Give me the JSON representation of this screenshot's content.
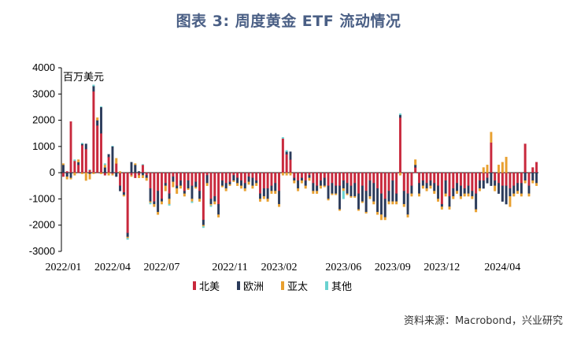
{
  "header": {
    "title": "图表 3:  周度黄金 ETF 流动情况"
  },
  "source": "资料来源：Macrobond，兴业研究",
  "chart_data": {
    "type": "bar",
    "stacked": true,
    "unit_label": "百万美元",
    "ylim": [
      -3000,
      4000
    ],
    "yticks": [
      -3000,
      -2000,
      -1000,
      0,
      1000,
      2000,
      3000,
      4000
    ],
    "xtick_labels": [
      "2022/01",
      "2022/04",
      "2022/07",
      "2022/11",
      "2023/02",
      "2023/06",
      "2023/09",
      "2023/12",
      "2024/04"
    ],
    "xtick_index": [
      0,
      13,
      26,
      44,
      57,
      74,
      87,
      100,
      116
    ],
    "legend_position": "bottom",
    "colors": {
      "north_america": "#c8283c",
      "europe": "#2a3a5a",
      "asia_pacific": "#e8a030",
      "other": "#6ad2d0"
    },
    "series": [
      {
        "name": "北美",
        "key": "north_america",
        "values": [
          -150,
          50,
          1950,
          450,
          300,
          1050,
          900,
          100,
          3100,
          1800,
          1500,
          -100,
          600,
          -50,
          350,
          -500,
          -750,
          -2300,
          -100,
          -200,
          -100,
          300,
          -100,
          -600,
          -1100,
          -700,
          -1000,
          -400,
          -800,
          -150,
          -500,
          -300,
          -700,
          -300,
          -500,
          -350,
          -700,
          -1800,
          -100,
          -1000,
          -900,
          -1200,
          -300,
          -400,
          -350,
          -100,
          -200,
          -300,
          -400,
          -150,
          -200,
          -300,
          -800,
          -600,
          -600,
          -500,
          -400,
          -700,
          1300,
          700,
          500,
          -200,
          -300,
          -200,
          -300,
          -100,
          -400,
          -500,
          -300,
          -200,
          -500,
          -400,
          -500,
          -500,
          -300,
          -400,
          -500,
          -400,
          -800,
          -500,
          -700,
          -300,
          -400,
          -600,
          -800,
          -1000,
          -700,
          -300,
          -800,
          2100,
          -700,
          -800,
          -500,
          200,
          -400,
          -300,
          -400,
          -300,
          -400,
          -500,
          -1200,
          -300,
          -900,
          -600,
          -400,
          -500,
          -600,
          -500,
          -700,
          -800,
          -300,
          -300,
          -200,
          1150,
          -300,
          -400,
          -500,
          -500,
          -600,
          -500,
          -400,
          -400,
          1100,
          -500,
          200,
          400
        ],
        "color": "#c8283c"
      },
      {
        "name": "欧洲",
        "key": "europe",
        "values": [
          300,
          -150,
          -200,
          0,
          100,
          50,
          200,
          -50,
          200,
          200,
          1000,
          200,
          100,
          1000,
          -150,
          -200,
          -100,
          -150,
          400,
          300,
          50,
          -100,
          -100,
          -500,
          -100,
          -800,
          -100,
          -100,
          -200,
          -200,
          -100,
          -200,
          -100,
          -300,
          -500,
          -200,
          -300,
          -200,
          -300,
          -200,
          -200,
          -400,
          -200,
          -200,
          -100,
          -200,
          -200,
          -200,
          -200,
          -200,
          -300,
          -100,
          -200,
          -300,
          -400,
          -200,
          -300,
          -500,
          0,
          100,
          300,
          -100,
          -300,
          -100,
          -200,
          -100,
          -300,
          -200,
          -200,
          -300,
          -500,
          -400,
          -300,
          -900,
          -300,
          -400,
          -400,
          -500,
          -600,
          -600,
          -800,
          -600,
          -700,
          -900,
          -800,
          -700,
          -400,
          -800,
          -300,
          100,
          -500,
          -800,
          -300,
          100,
          -400,
          -200,
          -200,
          -200,
          -300,
          -500,
          -100,
          -500,
          -400,
          -300,
          -300,
          -400,
          -200,
          -300,
          -200,
          -600,
          -300,
          -300,
          -200,
          -500,
          -200,
          -400,
          -600,
          -700,
          -300,
          -300,
          -300,
          -400,
          -300,
          -300,
          -300,
          -400
        ],
        "color": "#2a3a5a"
      },
      {
        "name": "亚太",
        "key": "asia_pacific",
        "values": [
          50,
          -100,
          -50,
          -100,
          100,
          -50,
          -300,
          -200,
          -50,
          100,
          -50,
          100,
          -100,
          -50,
          200,
          50,
          -50,
          -50,
          -50,
          50,
          -100,
          -100,
          -100,
          -50,
          -100,
          -100,
          -100,
          -200,
          -200,
          -200,
          -200,
          -100,
          -100,
          -50,
          -100,
          -50,
          -100,
          -50,
          -100,
          -50,
          -100,
          -100,
          -50,
          -100,
          -50,
          -50,
          -100,
          -100,
          -100,
          -100,
          -100,
          -100,
          -100,
          -100,
          -100,
          -100,
          -100,
          -100,
          -100,
          -100,
          -100,
          -100,
          -100,
          -100,
          -100,
          -100,
          -100,
          -100,
          -100,
          -50,
          -50,
          -50,
          -50,
          -50,
          -100,
          -50,
          -50,
          -50,
          -50,
          -50,
          -50,
          -100,
          -100,
          -100,
          -200,
          -100,
          -100,
          -100,
          -100,
          -100,
          -100,
          -100,
          -100,
          200,
          -100,
          -100,
          -100,
          -100,
          -100,
          -100,
          -100,
          -100,
          -100,
          -100,
          -100,
          -100,
          -100,
          -100,
          -100,
          -100,
          -100,
          200,
          300,
          400,
          -200,
          300,
          400,
          600,
          -400,
          -100,
          -100,
          -100,
          -100,
          -100,
          -100,
          -100,
          500
        ],
        "color": "#e8a030"
      },
      {
        "name": "其他",
        "key": "other",
        "values": [
          0,
          0,
          0,
          50,
          0,
          30,
          0,
          20,
          50,
          0,
          20,
          50,
          0,
          20,
          0,
          0,
          0,
          -50,
          0,
          0,
          0,
          20,
          0,
          -50,
          0,
          0,
          0,
          0,
          -50,
          0,
          0,
          0,
          0,
          0,
          -50,
          0,
          0,
          -50,
          0,
          -50,
          0,
          0,
          0,
          0,
          0,
          0,
          0,
          0,
          0,
          0,
          0,
          0,
          0,
          0,
          0,
          0,
          0,
          0,
          50,
          50,
          0,
          0,
          0,
          0,
          0,
          0,
          0,
          0,
          0,
          0,
          0,
          0,
          0,
          0,
          -300,
          0,
          0,
          0,
          0,
          0,
          0,
          0,
          0,
          0,
          0,
          0,
          0,
          0,
          0,
          50,
          0,
          0,
          0,
          0,
          0,
          0,
          0,
          0,
          0,
          0,
          0,
          0,
          0,
          0,
          0,
          0,
          0,
          0,
          0,
          0,
          0,
          0,
          0,
          0,
          0,
          0,
          0,
          0,
          0,
          0,
          0,
          0,
          0,
          0,
          0,
          0,
          0
        ]
      }
    ]
  }
}
